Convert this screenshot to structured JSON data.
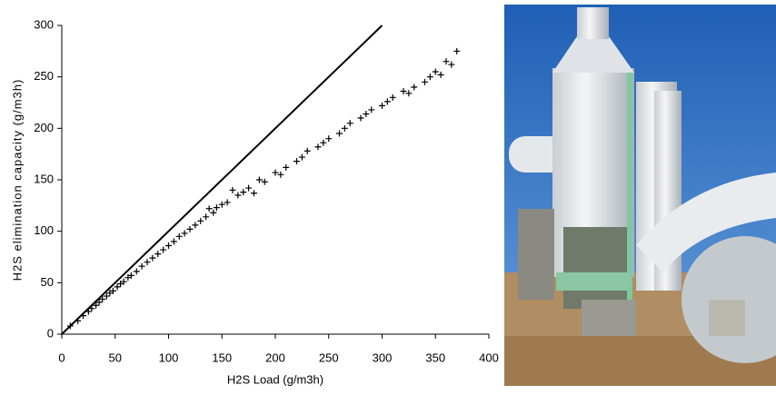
{
  "chart_data": {
    "type": "scatter",
    "xlabel": "H2S Load (g/m3h)",
    "ylabel": "H2S elimination capacity (g/m3h)",
    "xlim": [
      0,
      400
    ],
    "ylim": [
      0,
      300
    ],
    "xticks": [
      0,
      50,
      100,
      150,
      200,
      250,
      300,
      350,
      400
    ],
    "yticks": [
      0,
      50,
      100,
      150,
      200,
      250,
      300
    ],
    "color": "#000000",
    "x": [
      8,
      15,
      20,
      25,
      28,
      32,
      35,
      38,
      42,
      45,
      48,
      52,
      55,
      58,
      62,
      65,
      70,
      75,
      80,
      85,
      90,
      95,
      100,
      105,
      110,
      115,
      120,
      125,
      130,
      135,
      138,
      142,
      145,
      150,
      155,
      160,
      165,
      170,
      175,
      180,
      185,
      190,
      200,
      205,
      210,
      220,
      225,
      230,
      240,
      245,
      250,
      260,
      265,
      270,
      280,
      285,
      290,
      300,
      305,
      310,
      320,
      325,
      330,
      340,
      345,
      350,
      355,
      360,
      365,
      370
    ],
    "y": [
      8,
      13,
      18,
      22,
      25,
      28,
      31,
      34,
      37,
      40,
      42,
      46,
      49,
      51,
      55,
      57,
      61,
      66,
      70,
      74,
      78,
      82,
      86,
      90,
      95,
      98,
      102,
      106,
      110,
      114,
      122,
      118,
      123,
      126,
      128,
      140,
      135,
      138,
      142,
      137,
      150,
      148,
      157,
      155,
      162,
      168,
      172,
      178,
      182,
      186,
      190,
      195,
      200,
      205,
      210,
      214,
      218,
      222,
      226,
      230,
      236,
      234,
      240,
      245,
      250,
      255,
      252,
      265,
      262,
      275
    ],
    "line": {
      "x": [
        0,
        300
      ],
      "y": [
        0,
        300
      ]
    }
  }
}
